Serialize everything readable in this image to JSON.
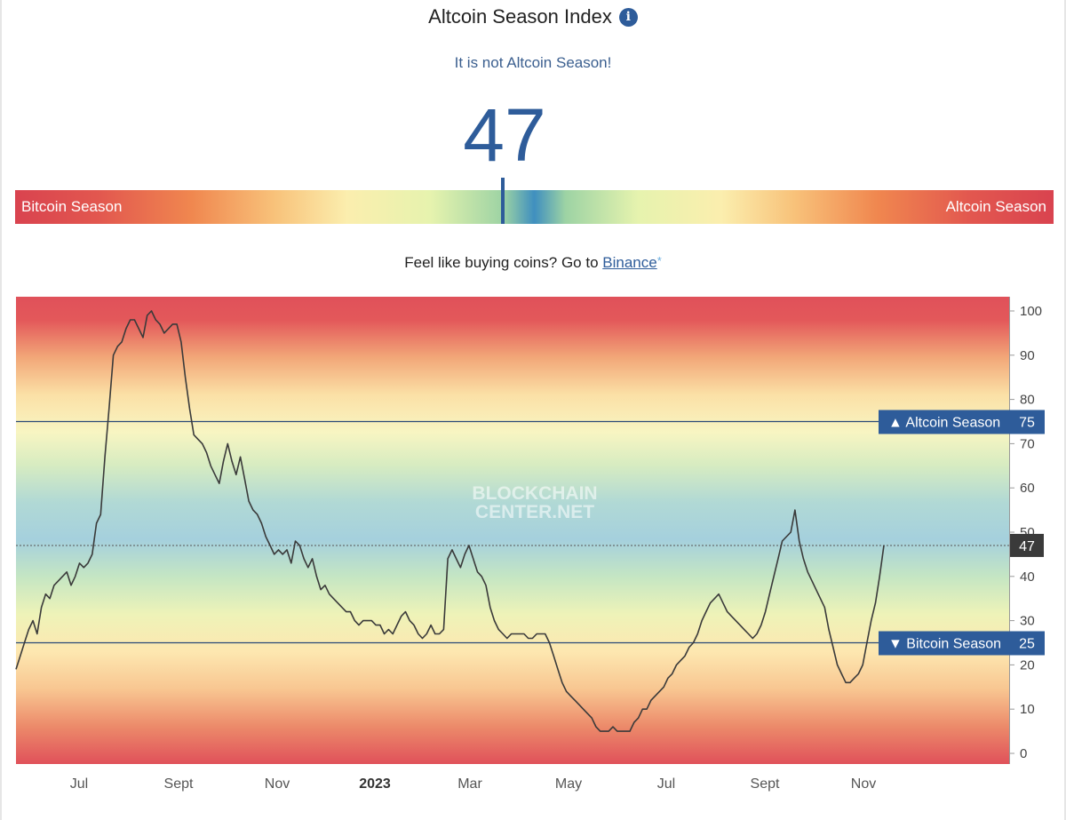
{
  "header": {
    "title": "Altcoin Season Index",
    "info_icon": "info-circle-icon",
    "status": "It is not Altcoin Season!",
    "value": "47"
  },
  "gauge": {
    "left_label": "Bitcoin Season",
    "right_label": "Altcoin Season",
    "value": 47
  },
  "promo": {
    "text": "Feel like buying coins? Go to ",
    "link": "Binance",
    "asterisk": "*"
  },
  "chart_data": {
    "type": "line",
    "title": "",
    "xlabel": "",
    "ylabel": "",
    "ylim": [
      0,
      100
    ],
    "yticks": [
      0,
      10,
      20,
      30,
      40,
      50,
      60,
      70,
      80,
      90,
      100
    ],
    "xtick_labels": [
      "Jul",
      "Sept",
      "Nov",
      "2023",
      "Mar",
      "May",
      "Jul",
      "Sept",
      "Nov"
    ],
    "watermark": [
      "BLOCKCHAIN",
      "CENTER.NET"
    ],
    "reference_lines": [
      {
        "label": "▲ Altcoin Season",
        "value": 75
      },
      {
        "label": "▼ Bitcoin Season",
        "value": 25
      }
    ],
    "current": {
      "label": "47",
      "value": 47
    },
    "series": [
      {
        "values": [
          19,
          22,
          25,
          28,
          30,
          27,
          33,
          36,
          35,
          38,
          39,
          40,
          41,
          38,
          40,
          43,
          42,
          43,
          45,
          52,
          54,
          67,
          78,
          90,
          92,
          93,
          96,
          98,
          98,
          96,
          94,
          99,
          100,
          98,
          97,
          95,
          96,
          97,
          97,
          93,
          85,
          78,
          72,
          71,
          70,
          68,
          65,
          63,
          61,
          66,
          70,
          66,
          63,
          67,
          62,
          57,
          55,
          54,
          52,
          49,
          47,
          45,
          46,
          45,
          46,
          43,
          48,
          47,
          44,
          42,
          44,
          40,
          37,
          38,
          36,
          35,
          34,
          33,
          32,
          32,
          30,
          29,
          30,
          30,
          30,
          29,
          29,
          27,
          28,
          27,
          29,
          31,
          32,
          30,
          29,
          27,
          26,
          27,
          29,
          27,
          27,
          28,
          44,
          46,
          44,
          42,
          45,
          47,
          44,
          41,
          40,
          38,
          33,
          30,
          28,
          27,
          26,
          27,
          27,
          27,
          27,
          26,
          26,
          27,
          27,
          27,
          25,
          22,
          19,
          16,
          14,
          13,
          12,
          11,
          10,
          9,
          8,
          6,
          5,
          5,
          5,
          6,
          5,
          5,
          5,
          5,
          7,
          8,
          10,
          10,
          12,
          13,
          14,
          15,
          17,
          18,
          20,
          21,
          22,
          24,
          25,
          27,
          30,
          32,
          34,
          35,
          36,
          34,
          32,
          31,
          30,
          29,
          28,
          27,
          26,
          27,
          29,
          32,
          36,
          40,
          44,
          48,
          49,
          50,
          55,
          48,
          44,
          41,
          39,
          37,
          35,
          33,
          28,
          24,
          20,
          18,
          16,
          16,
          17,
          18,
          20,
          25,
          30,
          34,
          40,
          47
        ]
      }
    ]
  }
}
